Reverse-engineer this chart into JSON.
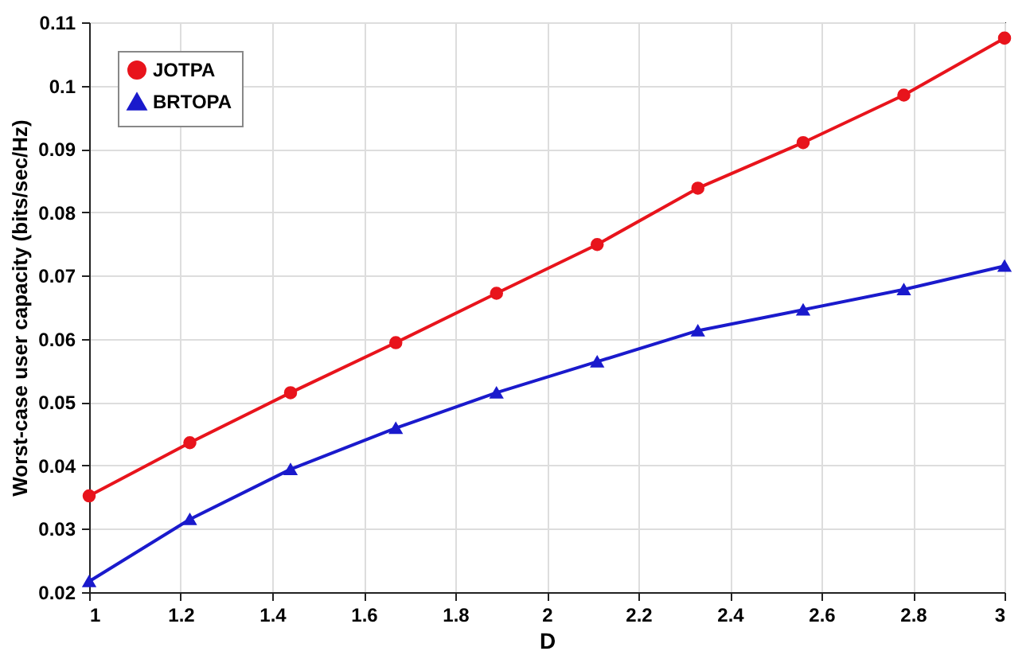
{
  "chart_data": {
    "type": "line",
    "xlabel": "D",
    "ylabel": "Worst-case user capacity (bits/sec/Hz)",
    "x": [
      1,
      1.22,
      1.44,
      1.67,
      1.89,
      2.11,
      2.33,
      2.56,
      2.78,
      3
    ],
    "series": [
      {
        "name": "JOTPA",
        "color": "#e8141c",
        "marker": "circle",
        "values": [
          0.0352,
          0.0436,
          0.0515,
          0.0594,
          0.0672,
          0.0749,
          0.0838,
          0.091,
          0.0985,
          0.1075
        ]
      },
      {
        "name": "BRTOPA",
        "color": "#1a1acc",
        "marker": "triangle",
        "values": [
          0.0217,
          0.0315,
          0.0394,
          0.0459,
          0.0515,
          0.0564,
          0.0613,
          0.0646,
          0.0678,
          0.0715
        ]
      }
    ],
    "xlim": [
      1,
      3
    ],
    "xticks": [
      1,
      1.2,
      1.4,
      1.6,
      1.8,
      2,
      2.2,
      2.4,
      2.6,
      2.8,
      3
    ],
    "ylim": [
      0.02,
      0.11
    ],
    "yticks": [
      0.02,
      0.03,
      0.04,
      0.05,
      0.06,
      0.07,
      0.08,
      0.09,
      0.1,
      0.11
    ],
    "grid": true,
    "legend": "top left",
    "line_style": "solid"
  }
}
